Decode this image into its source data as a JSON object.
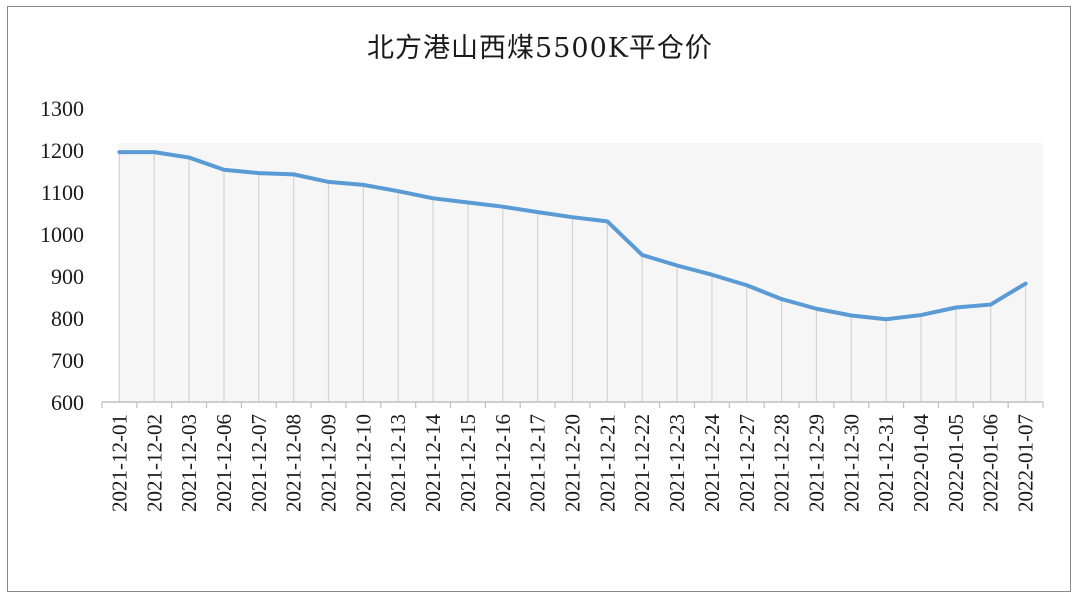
{
  "chart_data": {
    "type": "line",
    "title": "北方港山西煤5500K平仓价",
    "xlabel": "",
    "ylabel": "",
    "ylim": [
      600,
      1300
    ],
    "yticks": [
      "600",
      "700",
      "800",
      "900",
      "1000",
      "1100",
      "1200",
      "1300"
    ],
    "grid": "vertical drop lines",
    "legend": "none",
    "series_color": "#5b9bd5",
    "categories": [
      "2021-12-01",
      "2021-12-02",
      "2021-12-03",
      "2021-12-06",
      "2021-12-07",
      "2021-12-08",
      "2021-12-09",
      "2021-12-10",
      "2021-12-13",
      "2021-12-14",
      "2021-12-15",
      "2021-12-16",
      "2021-12-17",
      "2021-12-20",
      "2021-12-21",
      "2021-12-22",
      "2021-12-23",
      "2021-12-24",
      "2021-12-27",
      "2021-12-28",
      "2021-12-29",
      "2021-12-30",
      "2021-12-31",
      "2022-01-04",
      "2022-01-05",
      "2022-01-06",
      "2022-01-07"
    ],
    "values": [
      1195,
      1195,
      1182,
      1153,
      1145,
      1142,
      1124,
      1117,
      1102,
      1085,
      1075,
      1065,
      1052,
      1040,
      1030,
      950,
      925,
      903,
      878,
      845,
      822,
      806,
      797,
      807,
      825,
      832,
      882
    ]
  }
}
